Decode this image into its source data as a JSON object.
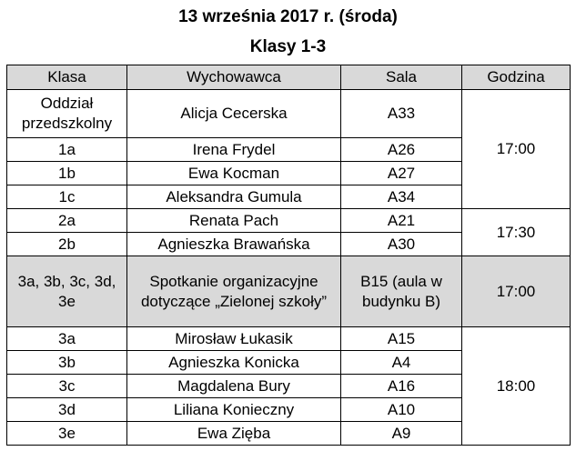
{
  "header": {
    "date": "13 września 2017 r. (środa)",
    "classes": "Klasy 1-3"
  },
  "table": {
    "columns": [
      "Klasa",
      "Wychowawca",
      "Sala",
      "Godzina"
    ],
    "group1": {
      "time": "17:00",
      "rows": [
        {
          "klasa": "Oddział przedszkolny",
          "wychowawca": "Alicja Cecerska",
          "sala": "A33"
        },
        {
          "klasa": "1a",
          "wychowawca": "Irena Frydel",
          "sala": "A26"
        },
        {
          "klasa": "1b",
          "wychowawca": "Ewa Kocman",
          "sala": "A27"
        },
        {
          "klasa": "1c",
          "wychowawca": "Aleksandra Gumula",
          "sala": "A34"
        }
      ]
    },
    "group2": {
      "time": "17:30",
      "rows": [
        {
          "klasa": "2a",
          "wychowawca": "Renata Pach",
          "sala": "A21"
        },
        {
          "klasa": "2b",
          "wychowawca": "Agnieszka Brawańska",
          "sala": "A30"
        }
      ]
    },
    "meeting": {
      "klasa": "3a, 3b, 3c, 3d, 3e",
      "wychowawca": "Spotkanie organizacyjne dotyczące „Zielonej szkoły”",
      "sala": "B15 (aula w budynku B)",
      "time": "17:00"
    },
    "group3": {
      "time": "18:00",
      "rows": [
        {
          "klasa": "3a",
          "wychowawca": "Mirosław Łukasik",
          "sala": "A15"
        },
        {
          "klasa": "3b",
          "wychowawca": "Agnieszka Konicka",
          "sala": "A4"
        },
        {
          "klasa": "3c",
          "wychowawca": "Magdalena Bury",
          "sala": "A16"
        },
        {
          "klasa": "3d",
          "wychowawca": "Liliana Konieczny",
          "sala": "A10"
        },
        {
          "klasa": "3e",
          "wychowawca": "Ewa Zięba",
          "sala": "A9"
        }
      ]
    }
  }
}
